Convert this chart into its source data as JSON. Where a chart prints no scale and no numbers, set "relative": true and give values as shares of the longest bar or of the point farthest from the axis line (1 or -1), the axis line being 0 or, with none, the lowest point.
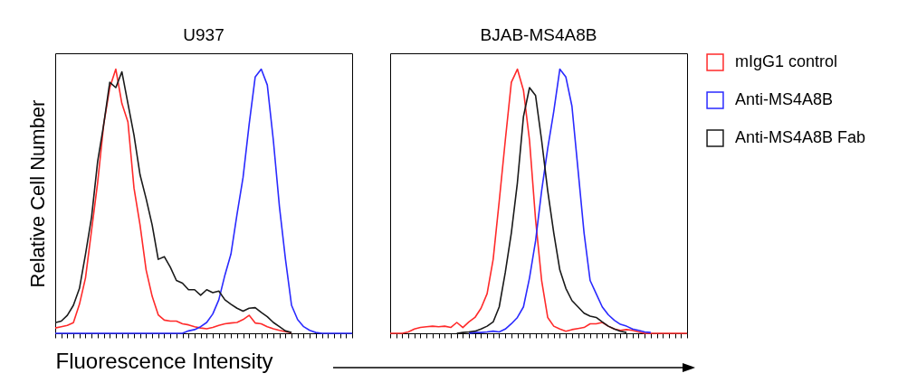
{
  "chart_data": [
    {
      "type": "line",
      "title": "U937",
      "xlabel": "Fluorescence Intensity",
      "ylabel": "Relative Cell Number",
      "relative": true,
      "tick_labels": false,
      "legend": false,
      "categories": [
        null,
        null,
        null,
        null,
        null,
        null,
        null,
        null,
        null,
        null,
        null,
        null,
        null,
        null,
        null,
        null,
        null,
        null,
        null,
        null,
        null,
        null,
        null,
        null,
        null,
        null,
        null,
        null,
        null,
        null,
        null,
        null,
        null,
        null,
        null,
        null,
        null,
        null,
        null,
        null,
        null,
        null,
        null,
        null,
        null,
        null,
        null,
        null,
        null,
        null
      ],
      "series": [
        {
          "color": "#ff2a2a",
          "values": [
            0.02,
            0.025,
            0.03,
            0.04,
            0.11,
            0.21,
            0.39,
            0.57,
            0.79,
            0.93,
            1.0,
            0.87,
            0.8,
            0.55,
            0.41,
            0.24,
            0.14,
            0.07,
            0.05,
            0.046,
            0.046,
            0.036,
            0.032,
            0.025,
            0.02,
            0.017,
            0.022,
            0.03,
            0.036,
            0.039,
            0.041,
            0.052,
            0.068,
            0.039,
            0.036,
            0.025,
            0.017,
            0.011,
            0.006,
            0.002,
            null,
            null,
            null,
            null,
            null,
            null,
            null,
            null,
            null,
            null
          ]
        },
        {
          "color": "#2a2aff",
          "values": [
            0,
            0,
            0,
            0,
            0,
            0,
            0,
            0,
            0,
            0,
            0,
            0,
            0,
            0,
            0,
            0,
            0,
            0,
            0,
            0,
            0,
            0,
            0.009,
            0.014,
            0.025,
            0.041,
            0.073,
            0.127,
            0.22,
            0.3,
            0.45,
            0.59,
            0.79,
            0.97,
            1.0,
            0.94,
            0.73,
            0.48,
            0.28,
            0.106,
            0.052,
            0.025,
            0.011,
            0.003,
            0,
            0,
            0,
            0,
            0,
            0
          ]
        },
        {
          "color": "#1a1a1a",
          "values": [
            0.04,
            0.046,
            0.068,
            0.106,
            0.17,
            0.3,
            0.44,
            0.65,
            0.79,
            0.95,
            0.93,
            0.99,
            0.87,
            0.75,
            0.6,
            0.51,
            0.41,
            0.28,
            0.29,
            0.25,
            0.2,
            0.19,
            0.165,
            0.165,
            0.144,
            0.165,
            0.154,
            0.16,
            0.127,
            0.11,
            0.095,
            0.084,
            0.095,
            0.097,
            0.079,
            0.063,
            0.041,
            0.025,
            0.009,
            0.003,
            null,
            null,
            null,
            null,
            null,
            null,
            null,
            null,
            null,
            null
          ]
        }
      ]
    },
    {
      "type": "line",
      "title": "BJAB-MS4A8B",
      "relative": true,
      "tick_labels": false,
      "legend": "right",
      "categories": [
        null,
        null,
        null,
        null,
        null,
        null,
        null,
        null,
        null,
        null,
        null,
        null,
        null,
        null,
        null,
        null,
        null,
        null,
        null,
        null,
        null,
        null,
        null,
        null,
        null,
        null,
        null,
        null,
        null,
        null,
        null,
        null,
        null,
        null,
        null,
        null,
        null,
        null,
        null,
        null,
        null,
        null,
        null,
        null,
        null,
        null,
        null,
        null,
        null,
        null
      ],
      "series": [
        {
          "name": "mIgG1 control",
          "color": "#ff2a2a",
          "values": [
            0,
            0,
            0,
            0.005,
            0.016,
            0.022,
            0.025,
            0.027,
            0.025,
            0.027,
            0.022,
            0.041,
            0.022,
            0.043,
            0.06,
            0.095,
            0.15,
            0.28,
            0.5,
            0.73,
            0.95,
            1.0,
            0.92,
            0.73,
            0.43,
            0.2,
            0.06,
            0.027,
            0.016,
            0.008,
            0.014,
            0.018,
            0.022,
            0.036,
            0.036,
            0.041,
            0.027,
            0.016,
            0.011,
            0.014,
            0.011,
            0.005,
            0,
            0,
            0,
            0,
            0,
            0,
            0,
            0
          ]
        },
        {
          "name": "Anti-MS4A8B",
          "color": "#2a2aff",
          "values": [
            null,
            null,
            null,
            null,
            null,
            null,
            null,
            null,
            null,
            null,
            null,
            null,
            null,
            0,
            0.003,
            0.003,
            0.005,
            0.008,
            0.005,
            0.016,
            0.036,
            0.06,
            0.1,
            0.21,
            0.35,
            0.54,
            0.7,
            0.84,
            1.0,
            0.97,
            0.86,
            0.62,
            0.38,
            0.2,
            0.15,
            0.1,
            0.07,
            0.049,
            0.034,
            0.027,
            0.016,
            0.011,
            0.005,
            0.003,
            null,
            null,
            null,
            null,
            null,
            null
          ]
        },
        {
          "name": "Anti-MS4A8B Fab",
          "color": "#1a1a1a",
          "values": [
            null,
            null,
            null,
            null,
            null,
            null,
            null,
            null,
            null,
            null,
            null,
            0,
            0.003,
            0.005,
            0.008,
            0.016,
            0.027,
            0.043,
            0.1,
            0.23,
            0.38,
            0.57,
            0.82,
            0.93,
            0.9,
            0.73,
            0.54,
            0.38,
            0.24,
            0.17,
            0.124,
            0.1,
            0.076,
            0.065,
            0.06,
            0.043,
            0.027,
            0.016,
            0.008,
            0.003,
            null,
            null,
            null,
            null,
            null,
            null,
            null,
            null,
            null,
            null
          ]
        }
      ]
    }
  ]
}
